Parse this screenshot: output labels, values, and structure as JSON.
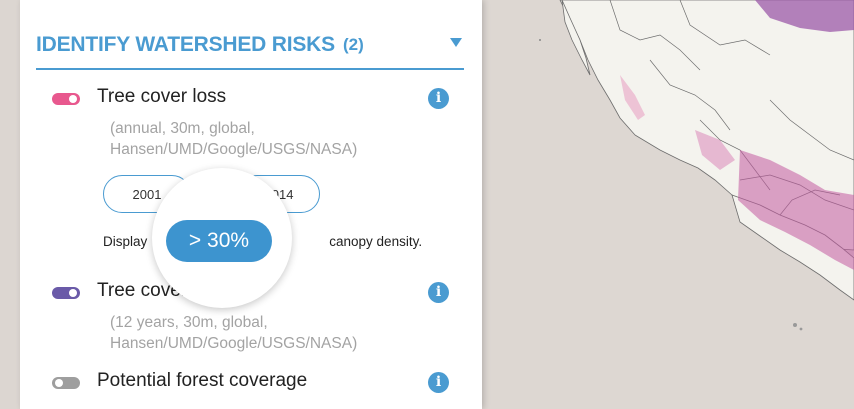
{
  "section": {
    "title": "IDENTIFY WATERSHED RISKS",
    "count": "(2)",
    "collapse_icon": "caret-down-icon"
  },
  "layers": [
    {
      "title": "Tree cover loss",
      "subtitle_line1": "(annual, 30m, global,",
      "subtitle_line2": "Hansen/UMD/Google/USGS/NASA)",
      "toggle_color": "#e8588e",
      "toggle_on": true
    },
    {
      "title": "Tree cover (2000)",
      "subtitle_line1": "(12 years, 30m, global,",
      "subtitle_line2": "Hansen/UMD/Google/USGS/NASA)",
      "toggle_color": "#6a5aa8",
      "toggle_on": true
    },
    {
      "title": "Potential forest coverage",
      "toggle_color": "#9e9e9e",
      "toggle_on": false
    }
  ],
  "timeline": {
    "start": "2001",
    "end": "2014"
  },
  "canopy": {
    "display_prefix": "Display",
    "display_suffix": "canopy density.",
    "value": "> 30%"
  },
  "colors": {
    "accent": "#4a9bd1",
    "map_background": "#ddd7d2",
    "land": "#f4f3ee"
  }
}
